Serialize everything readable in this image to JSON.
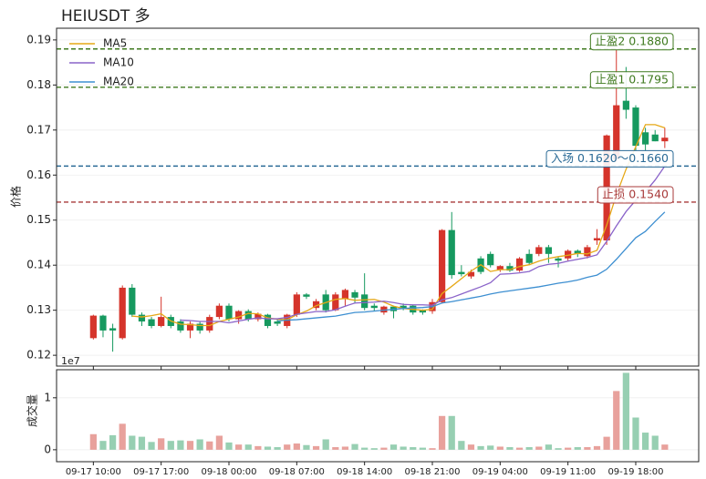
{
  "chart_data": {
    "type": "candlestick",
    "title": "HEIUSDT  多",
    "ylabel": "价格",
    "categories": [
      "09-17 10:00",
      null,
      null,
      null,
      null,
      null,
      null,
      "09-17 17:00",
      null,
      null,
      null,
      null,
      null,
      null,
      "09-18 00:00",
      null,
      null,
      null,
      null,
      null,
      null,
      "09-18 07:00",
      null,
      null,
      null,
      null,
      null,
      null,
      "09-18 14:00",
      null,
      null,
      null,
      null,
      null,
      null,
      "09-18 21:00",
      null,
      null,
      null,
      null,
      null,
      null,
      "09-19 04:00",
      null,
      null,
      null,
      null,
      null,
      null,
      "09-19 11:00",
      null,
      null,
      null,
      null,
      null,
      null,
      "09-19 18:00",
      null,
      null,
      null
    ],
    "open": [
      0.1238,
      0.1288,
      0.126,
      0.1238,
      0.135,
      0.129,
      0.128,
      0.1265,
      0.1285,
      0.1275,
      0.1255,
      0.127,
      0.1255,
      0.1285,
      0.131,
      0.128,
      0.1298,
      0.128,
      0.129,
      0.1275,
      0.1265,
      0.129,
      0.1335,
      0.1305,
      0.1335,
      0.13,
      0.1325,
      0.134,
      0.1335,
      0.131,
      0.1295,
      0.1308,
      0.131,
      0.131,
      0.13,
      0.1298,
      0.1318,
      0.1478,
      0.1385,
      0.1375,
      0.1415,
      0.1425,
      0.139,
      0.1398,
      0.1388,
      0.1425,
      0.1425,
      0.144,
      0.1415,
      0.1415,
      0.1432,
      0.142,
      0.1455,
      0.1455,
      0.1635,
      0.1765,
      0.175,
      0.1695,
      0.169,
      0.1675
    ],
    "high": [
      0.129,
      0.129,
      0.127,
      0.1355,
      0.1358,
      0.1295,
      0.1285,
      0.133,
      0.129,
      0.128,
      0.1275,
      0.1275,
      0.129,
      0.1315,
      0.1315,
      0.13,
      0.1302,
      0.1295,
      0.1292,
      0.128,
      0.1292,
      0.134,
      0.1338,
      0.1325,
      0.1345,
      0.134,
      0.1348,
      0.1345,
      0.1382,
      0.1315,
      0.131,
      0.131,
      0.1315,
      0.1312,
      0.1302,
      0.1325,
      0.148,
      0.1518,
      0.14,
      0.139,
      0.142,
      0.143,
      0.14,
      0.1405,
      0.1418,
      0.1435,
      0.1445,
      0.1445,
      0.1418,
      0.1435,
      0.1435,
      0.1445,
      0.148,
      0.169,
      0.188,
      0.184,
      0.1755,
      0.1705,
      0.17,
      0.1705
    ],
    "low": [
      0.1235,
      0.124,
      0.1208,
      0.1235,
      0.1285,
      0.1265,
      0.126,
      0.1262,
      0.126,
      0.125,
      0.1238,
      0.1248,
      0.125,
      0.128,
      0.1275,
      0.127,
      0.1275,
      0.1275,
      0.126,
      0.1265,
      0.126,
      0.1285,
      0.1325,
      0.13,
      0.1295,
      0.1298,
      0.131,
      0.1315,
      0.13,
      0.1298,
      0.129,
      0.1282,
      0.13,
      0.129,
      0.129,
      0.1292,
      0.1315,
      0.137,
      0.1375,
      0.137,
      0.138,
      0.1395,
      0.1385,
      0.1385,
      0.1385,
      0.14,
      0.142,
      0.1405,
      0.1395,
      0.141,
      0.1418,
      0.1415,
      0.1445,
      0.1445,
      0.163,
      0.1725,
      0.1655,
      0.1655,
      0.1675,
      0.166
    ],
    "close": [
      0.1288,
      0.1255,
      0.1255,
      0.135,
      0.129,
      0.1275,
      0.1265,
      0.1285,
      0.1265,
      0.1255,
      0.127,
      0.1255,
      0.1285,
      0.131,
      0.128,
      0.1298,
      0.128,
      0.1292,
      0.1265,
      0.127,
      0.129,
      0.1335,
      0.133,
      0.132,
      0.13,
      0.1335,
      0.1345,
      0.1328,
      0.1305,
      0.1305,
      0.1308,
      0.1298,
      0.1305,
      0.1295,
      0.1295,
      0.1318,
      0.1478,
      0.1378,
      0.138,
      0.1385,
      0.1385,
      0.14,
      0.1398,
      0.1388,
      0.1415,
      0.1405,
      0.144,
      0.1425,
      0.141,
      0.1432,
      0.1425,
      0.144,
      0.146,
      0.1688,
      0.1755,
      0.1745,
      0.1665,
      0.1668,
      0.1675,
      0.1683
    ],
    "up_color": "#d5342b",
    "down_color": "#16995f",
    "series": [
      {
        "name": "MA5",
        "color": "#e6a817",
        "values": [
          null,
          null,
          null,
          null,
          0.1287,
          0.1285,
          0.1288,
          0.1292,
          0.1276,
          0.1269,
          0.1268,
          0.1266,
          0.1266,
          0.1275,
          0.128,
          0.1285,
          0.1293,
          0.1292,
          0.1283,
          0.128,
          0.1279,
          0.129,
          0.1298,
          0.131,
          0.1317,
          0.1324,
          0.1326,
          0.1322,
          0.1323,
          0.1324,
          0.1318,
          0.1309,
          0.1304,
          0.1302,
          0.13,
          0.1302,
          0.1337,
          0.1353,
          0.137,
          0.1387,
          0.1401,
          0.1386,
          0.139,
          0.139,
          0.1397,
          0.1401,
          0.1409,
          0.1415,
          0.1419,
          0.1422,
          0.1426,
          0.1425,
          0.1433,
          0.1489,
          0.1556,
          0.1613,
          0.1663,
          0.1712,
          0.1712,
          0.1705
        ]
      },
      {
        "name": "MA10",
        "color": "#8a63c9",
        "values": [
          null,
          null,
          null,
          null,
          null,
          null,
          null,
          null,
          null,
          0.1278,
          0.1277,
          0.1275,
          0.1275,
          0.1275,
          0.1272,
          0.1276,
          0.128,
          0.1283,
          0.1281,
          0.1281,
          0.1284,
          0.1291,
          0.1294,
          0.1297,
          0.1297,
          0.1301,
          0.1309,
          0.1316,
          0.1317,
          0.1318,
          0.132,
          0.1317,
          0.1313,
          0.1312,
          0.1312,
          0.1311,
          0.1323,
          0.1328,
          0.1336,
          0.1344,
          0.1352,
          0.1361,
          0.138,
          0.1381,
          0.1383,
          0.1386,
          0.1397,
          0.1402,
          0.1404,
          0.1409,
          0.1413,
          0.1417,
          0.1423,
          0.1453,
          0.1487,
          0.1519,
          0.1544,
          0.1563,
          0.1589,
          0.162
        ]
      },
      {
        "name": "MA20",
        "color": "#3d8fd1",
        "values": [
          null,
          null,
          null,
          null,
          null,
          null,
          null,
          null,
          null,
          null,
          null,
          null,
          null,
          null,
          null,
          null,
          null,
          null,
          null,
          0.1276,
          0.1278,
          0.1279,
          0.1281,
          0.1283,
          0.1285,
          0.1287,
          0.1291,
          0.1295,
          0.1296,
          0.1298,
          0.13,
          0.1302,
          0.1304,
          0.1305,
          0.1306,
          0.1308,
          0.1316,
          0.1319,
          0.1323,
          0.1327,
          0.1331,
          0.1336,
          0.134,
          0.1343,
          0.1346,
          0.1349,
          0.1352,
          0.1356,
          0.136,
          0.1363,
          0.1367,
          0.1373,
          0.1378,
          0.1391,
          0.1413,
          0.1437,
          0.1461,
          0.1475,
          0.1497,
          0.1518
        ]
      }
    ],
    "levels": [
      {
        "label": "止盈2 0.1880",
        "value": 0.188,
        "color": "#3f7a1f"
      },
      {
        "label": "止盈1 0.1795",
        "value": 0.1795,
        "color": "#3f7a1f"
      },
      {
        "label": "入场 0.1620～0.1660",
        "value": 0.162,
        "color": "#2a6a96"
      },
      {
        "label": "止损 0.1540",
        "value": 0.154,
        "color": "#a83a3a"
      }
    ],
    "xlim": [
      -3.8,
      62.5
    ],
    "ylim": [
      0.1176,
      0.1926
    ],
    "yticks": [
      0.12,
      0.13,
      0.14,
      0.15,
      0.16,
      0.17,
      0.18,
      0.19
    ],
    "grid": true,
    "legend": "upper left",
    "volume": {
      "ylabel": "成交量",
      "offset_label": "1e7",
      "up_color": "#e8a19c",
      "down_color": "#97cfb2",
      "values": [
        0.3,
        0.17,
        0.28,
        0.5,
        0.27,
        0.25,
        0.15,
        0.22,
        0.17,
        0.18,
        0.17,
        0.2,
        0.16,
        0.27,
        0.14,
        0.1,
        0.1,
        0.07,
        0.06,
        0.05,
        0.1,
        0.12,
        0.09,
        0.07,
        0.2,
        0.05,
        0.06,
        0.11,
        0.04,
        0.03,
        0.04,
        0.1,
        0.06,
        0.05,
        0.04,
        0.03,
        0.65,
        0.65,
        0.17,
        0.1,
        0.07,
        0.08,
        0.06,
        0.05,
        0.04,
        0.05,
        0.06,
        0.1,
        0.03,
        0.04,
        0.05,
        0.05,
        0.07,
        0.25,
        1.13,
        1.48,
        0.62,
        0.33,
        0.27,
        0.1
      ],
      "ylim": [
        -0.23,
        1.54
      ],
      "yticks": [
        0,
        1
      ]
    }
  }
}
